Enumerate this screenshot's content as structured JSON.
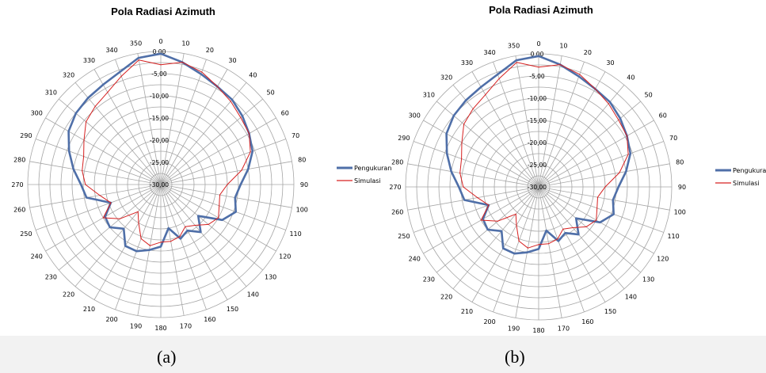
{
  "chart_data": [
    {
      "type": "polar-line",
      "title": "Pola Radiasi Azimuth",
      "caption": "(a)",
      "angles": [
        0,
        10,
        20,
        30,
        40,
        50,
        60,
        70,
        80,
        90,
        100,
        110,
        120,
        130,
        140,
        150,
        160,
        170,
        180,
        190,
        200,
        210,
        220,
        230,
        240,
        250,
        260,
        270,
        280,
        290,
        300,
        310,
        320,
        330,
        340,
        350
      ],
      "angle_labels": [
        "0",
        "10",
        "20",
        "30",
        "40",
        "50",
        "60",
        "70",
        "80",
        "90",
        "100",
        "110",
        "120",
        "130",
        "140",
        "150",
        "160",
        "170",
        "180",
        "190",
        "200",
        "210",
        "220",
        "230",
        "240",
        "250",
        "260",
        "270",
        "280",
        "290",
        "300",
        "310",
        "320",
        "330",
        "340",
        "350"
      ],
      "radial_ticks": [
        0,
        -5,
        -10,
        -15,
        -20,
        -25,
        -30
      ],
      "radial_tick_labels": [
        "0,00",
        "-5,00",
        "-10,00",
        "-15,00",
        "-20,00",
        "-25,00",
        "-30,00"
      ],
      "rlim": [
        -30,
        0
      ],
      "legend_position": "right",
      "series": [
        {
          "name": "Pengukuran",
          "color": "#4f6fa8",
          "values": [
            -0.5,
            -2,
            -3.5,
            -4.5,
            -5,
            -6,
            -7,
            -8,
            -10,
            -12,
            -13,
            -12,
            -14,
            -19,
            -16,
            -18,
            -17,
            -20,
            -16,
            -15,
            -14,
            -14,
            -17,
            -15,
            -15.5,
            -18,
            -13,
            -12,
            -10,
            -8,
            -6,
            -5,
            -4.5,
            -4,
            -3,
            -1
          ]
        },
        {
          "name": "Simulasi",
          "color": "#d62020",
          "values": [
            -3,
            -2,
            -3,
            -4.5,
            -5.5,
            -6.5,
            -7,
            -8.5,
            -11.5,
            -15,
            -16.5,
            -16,
            -15,
            -16,
            -18,
            -19,
            -17.5,
            -17,
            -17,
            -16,
            -17,
            -20,
            -22,
            -18,
            -15,
            -18,
            -16,
            -13,
            -12,
            -11.5,
            -10,
            -8,
            -7,
            -6,
            -4,
            -1.5
          ]
        }
      ]
    },
    {
      "type": "polar-line",
      "title": "Pola Radiasi Azimuth",
      "caption": "(b)",
      "angles": [
        0,
        10,
        20,
        30,
        40,
        50,
        60,
        70,
        80,
        90,
        100,
        110,
        120,
        130,
        140,
        150,
        160,
        170,
        180,
        190,
        200,
        210,
        220,
        230,
        240,
        250,
        260,
        270,
        280,
        290,
        300,
        310,
        320,
        330,
        340,
        350
      ],
      "angle_labels": [
        "0",
        "10",
        "20",
        "30",
        "40",
        "50",
        "60",
        "70",
        "80",
        "90",
        "100",
        "110",
        "120",
        "130",
        "140",
        "150",
        "160",
        "170",
        "180",
        "190",
        "200",
        "210",
        "220",
        "230",
        "240",
        "250",
        "260",
        "270",
        "280",
        "290",
        "300",
        "310",
        "320",
        "330",
        "340",
        "350"
      ],
      "radial_ticks": [
        0,
        -5,
        -10,
        -15,
        -20,
        -25,
        -30
      ],
      "radial_tick_labels": [
        "0,00",
        "-5,00",
        "-10,00",
        "-15,00",
        "-20,00",
        "-25,00",
        "-30,00"
      ],
      "rlim": [
        -30,
        0
      ],
      "legend_position": "right",
      "series": [
        {
          "name": "Pengukuran",
          "color": "#4f6fa8",
          "values": [
            -0.5,
            -2,
            -3.5,
            -4.5,
            -5,
            -6,
            -7,
            -8,
            -10,
            -12,
            -13,
            -12,
            -14,
            -19,
            -16,
            -18,
            -17,
            -20,
            -16,
            -15,
            -14,
            -14,
            -17,
            -15,
            -15.5,
            -18,
            -13,
            -12,
            -10,
            -8,
            -6,
            -5,
            -4.5,
            -4,
            -3,
            -1
          ]
        },
        {
          "name": "Simulasi",
          "color": "#d62020",
          "values": [
            -3,
            -2,
            -3,
            -4.5,
            -5.5,
            -6.5,
            -7,
            -8.5,
            -11.5,
            -15,
            -16.5,
            -16,
            -15,
            -16,
            -18,
            -19,
            -17.5,
            -17,
            -17,
            -16,
            -17,
            -20,
            -22,
            -18,
            -15,
            -18,
            -16,
            -13,
            -12,
            -11.5,
            -10,
            -8,
            -7,
            -6,
            -4,
            -1.5
          ]
        }
      ]
    }
  ]
}
